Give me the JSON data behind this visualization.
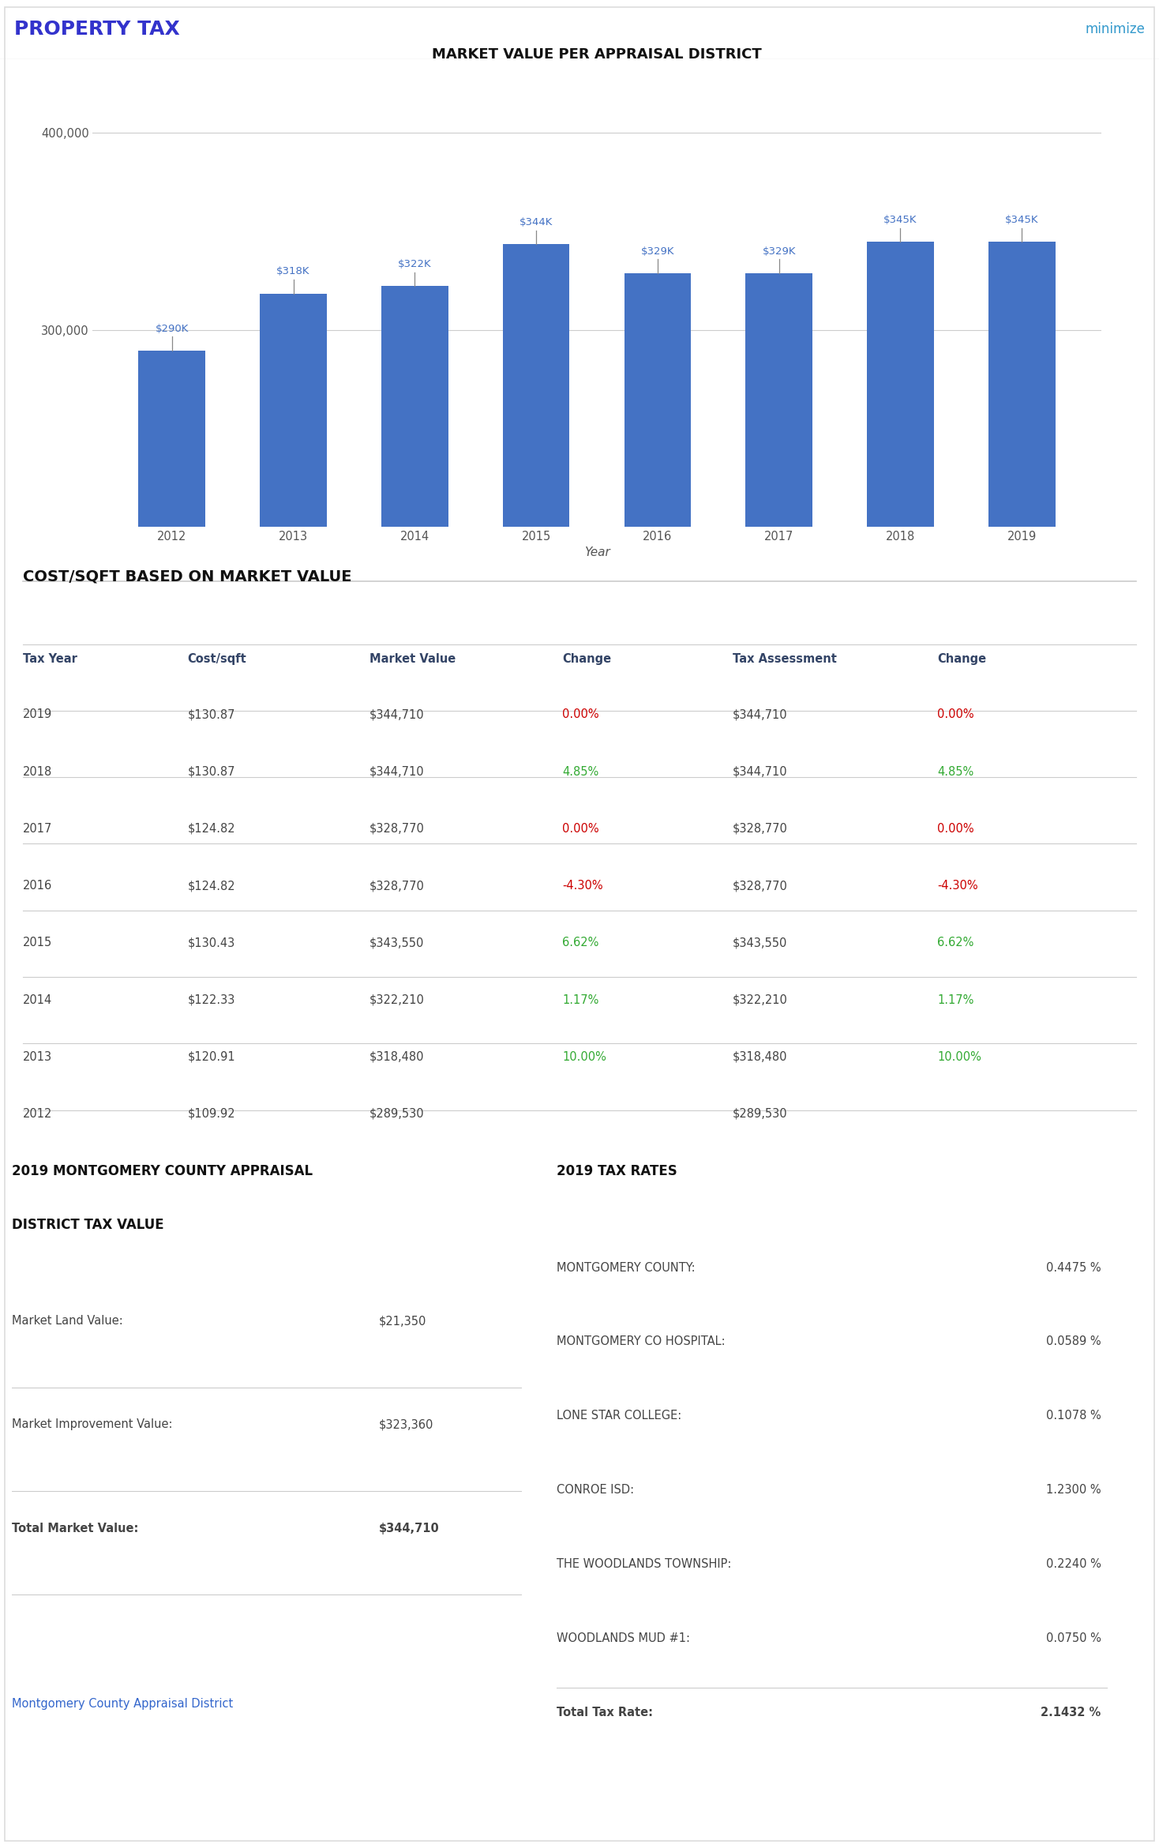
{
  "page_title": "PROPERTY TAX",
  "page_title_color": "#3333cc",
  "minimize_text": "minimize",
  "minimize_color": "#3399cc",
  "chart_title": "MARKET VALUE PER APPRAISAL DISTRICT",
  "bar_years": [
    "2012",
    "2013",
    "2014",
    "2015",
    "2016",
    "2017",
    "2018",
    "2019"
  ],
  "bar_values": [
    289530,
    318480,
    322210,
    343550,
    328770,
    328770,
    344710,
    344710
  ],
  "bar_labels": [
    "$290K",
    "$318K",
    "$322K",
    "$344K",
    "$329K",
    "$329K",
    "$345K",
    "$345K"
  ],
  "bar_color": "#4472C4",
  "bar_label_color": "#4472C4",
  "xlabel": "Year",
  "y_lim": [
    200000,
    430000
  ],
  "table_section_title": "COST/SQFT BASED ON MARKET VALUE",
  "table_headers": [
    "Tax Year",
    "Cost/sqft",
    "Market Value",
    "Change",
    "Tax Assessment",
    "Change"
  ],
  "table_data": [
    [
      "2019",
      "$130.87",
      "$344,710",
      "0.00%",
      "$344,710",
      "0.00%"
    ],
    [
      "2018",
      "$130.87",
      "$344,710",
      "4.85%",
      "$344,710",
      "4.85%"
    ],
    [
      "2017",
      "$124.82",
      "$328,770",
      "0.00%",
      "$328,770",
      "0.00%"
    ],
    [
      "2016",
      "$124.82",
      "$328,770",
      "-4.30%",
      "$328,770",
      "-4.30%"
    ],
    [
      "2015",
      "$130.43",
      "$343,550",
      "6.62%",
      "$343,550",
      "6.62%"
    ],
    [
      "2014",
      "$122.33",
      "$322,210",
      "1.17%",
      "$322,210",
      "1.17%"
    ],
    [
      "2013",
      "$120.91",
      "$318,480",
      "10.00%",
      "$318,480",
      "10.00%"
    ],
    [
      "2012",
      "$109.92",
      "$289,530",
      "",
      "$289,530",
      ""
    ]
  ],
  "appraisal_title_line1": "2019 MONTGOMERY COUNTY APPRAISAL",
  "appraisal_title_line2": "DISTRICT TAX VALUE",
  "appraisal_rows": [
    [
      "Market Land Value:",
      "$21,350",
      false
    ],
    [
      "Market Improvement Value:",
      "$323,360",
      false
    ],
    [
      "Total Market Value:",
      "$344,710",
      true
    ]
  ],
  "appraisal_link": "Montgomery County Appraisal District",
  "appraisal_link_color": "#3366cc",
  "tax_rates_title": "2019 TAX RATES",
  "tax_rates": [
    [
      "MONTGOMERY COUNTY:",
      "0.4475 %",
      false
    ],
    [
      "MONTGOMERY CO HOSPITAL:",
      "0.0589 %",
      false
    ],
    [
      "LONE STAR COLLEGE:",
      "0.1078 %",
      false
    ],
    [
      "CONROE ISD:",
      "1.2300 %",
      false
    ],
    [
      "THE WOODLANDS TOWNSHIP:",
      "0.2240 %",
      false
    ],
    [
      "WOODLANDS MUD #1:",
      "0.0750 %",
      false
    ],
    [
      "Total Tax Rate:",
      "2.1432 %",
      true
    ]
  ],
  "bg_color": "#ffffff",
  "text_color_dark": "#444444",
  "header_color": "#334466",
  "divider_color": "#cccccc"
}
